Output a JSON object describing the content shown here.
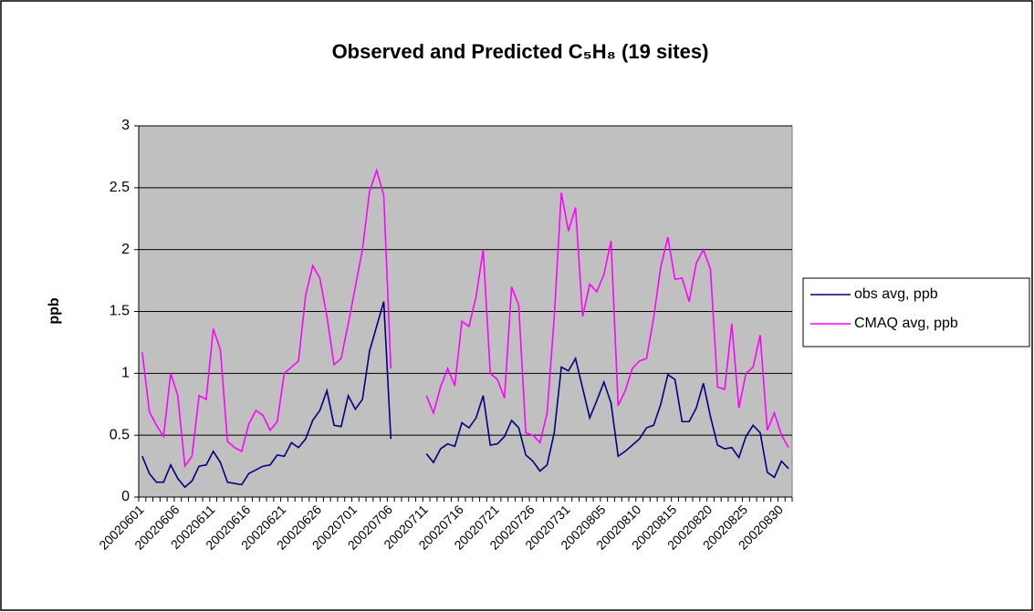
{
  "chart_data": {
    "type": "line",
    "title": "Observed and Predicted C₅H₈ (19 sites)",
    "y_label": "ppb",
    "categories": [
      "20020601",
      null,
      null,
      null,
      null,
      "20020606",
      null,
      null,
      null,
      null,
      "20020611",
      null,
      null,
      null,
      null,
      "20020616",
      null,
      null,
      null,
      null,
      "20020621",
      null,
      null,
      null,
      null,
      "20020626",
      null,
      null,
      null,
      null,
      "20020701",
      null,
      null,
      null,
      null,
      "20020706",
      null,
      null,
      null,
      null,
      "20020711",
      null,
      null,
      null,
      null,
      "20020716",
      null,
      null,
      null,
      null,
      "20020721",
      null,
      null,
      null,
      null,
      "20020726",
      null,
      null,
      null,
      null,
      "20020731",
      null,
      null,
      null,
      null,
      "20020805",
      null,
      null,
      null,
      null,
      "20020810",
      null,
      null,
      null,
      null,
      "20020815",
      null,
      null,
      null,
      null,
      "20020820",
      null,
      null,
      null,
      null,
      "20020825",
      null,
      null,
      null,
      null,
      "20020830",
      null
    ],
    "series": [
      {
        "name": "obs avg, ppb",
        "color": "#000080",
        "values": [
          0.33,
          0.19,
          0.12,
          0.12,
          0.26,
          0.15,
          0.08,
          0.13,
          0.25,
          0.26,
          0.37,
          0.28,
          0.12,
          0.11,
          0.1,
          0.19,
          0.22,
          0.25,
          0.26,
          0.34,
          0.33,
          0.44,
          0.4,
          0.47,
          0.62,
          0.7,
          0.86,
          0.58,
          0.57,
          0.82,
          0.71,
          0.79,
          1.18,
          1.38,
          1.58,
          0.47,
          null,
          null,
          null,
          null,
          0.35,
          0.28,
          0.39,
          0.43,
          0.41,
          0.6,
          0.56,
          0.64,
          0.82,
          0.42,
          0.43,
          0.49,
          0.62,
          0.56,
          0.34,
          0.29,
          0.21,
          0.26,
          0.52,
          1.05,
          1.02,
          1.12,
          0.88,
          0.64,
          0.78,
          0.93,
          0.76,
          0.33,
          0.37,
          0.42,
          0.47,
          0.56,
          0.58,
          0.75,
          0.99,
          0.95,
          0.61,
          0.61,
          0.72,
          0.92,
          0.65,
          0.42,
          0.39,
          0.4,
          0.32,
          0.49,
          0.58,
          0.52,
          0.2,
          0.16,
          0.29,
          0.23
        ]
      },
      {
        "name": "CMAQ avg, ppb",
        "color": "#ff00ff",
        "values": [
          1.17,
          0.69,
          0.58,
          0.49,
          1.0,
          0.82,
          0.25,
          0.33,
          0.82,
          0.79,
          1.36,
          1.19,
          0.45,
          0.4,
          0.37,
          0.59,
          0.7,
          0.66,
          0.54,
          0.61,
          1.0,
          1.05,
          1.1,
          1.63,
          1.87,
          1.77,
          1.46,
          1.07,
          1.12,
          1.4,
          1.7,
          2.0,
          2.47,
          2.64,
          2.44,
          1.04,
          null,
          null,
          null,
          null,
          0.82,
          0.68,
          0.89,
          1.04,
          0.9,
          1.42,
          1.38,
          1.62,
          2.0,
          1.0,
          0.95,
          0.8,
          1.7,
          1.55,
          0.52,
          0.5,
          0.44,
          0.68,
          1.45,
          2.46,
          2.15,
          2.34,
          1.46,
          1.72,
          1.66,
          1.8,
          2.07,
          0.74,
          0.86,
          1.04,
          1.1,
          1.12,
          1.45,
          1.86,
          2.1,
          1.76,
          1.77,
          1.58,
          1.89,
          2.0,
          1.84,
          0.89,
          0.87,
          1.4,
          0.72,
          1.0,
          1.05,
          1.31,
          0.54,
          0.68,
          0.5,
          0.4
        ]
      }
    ],
    "ylim": [
      0,
      3
    ],
    "yticks": [
      0,
      0.5,
      1,
      1.5,
      2,
      2.5,
      3
    ],
    "grid": true,
    "legend": "right"
  }
}
